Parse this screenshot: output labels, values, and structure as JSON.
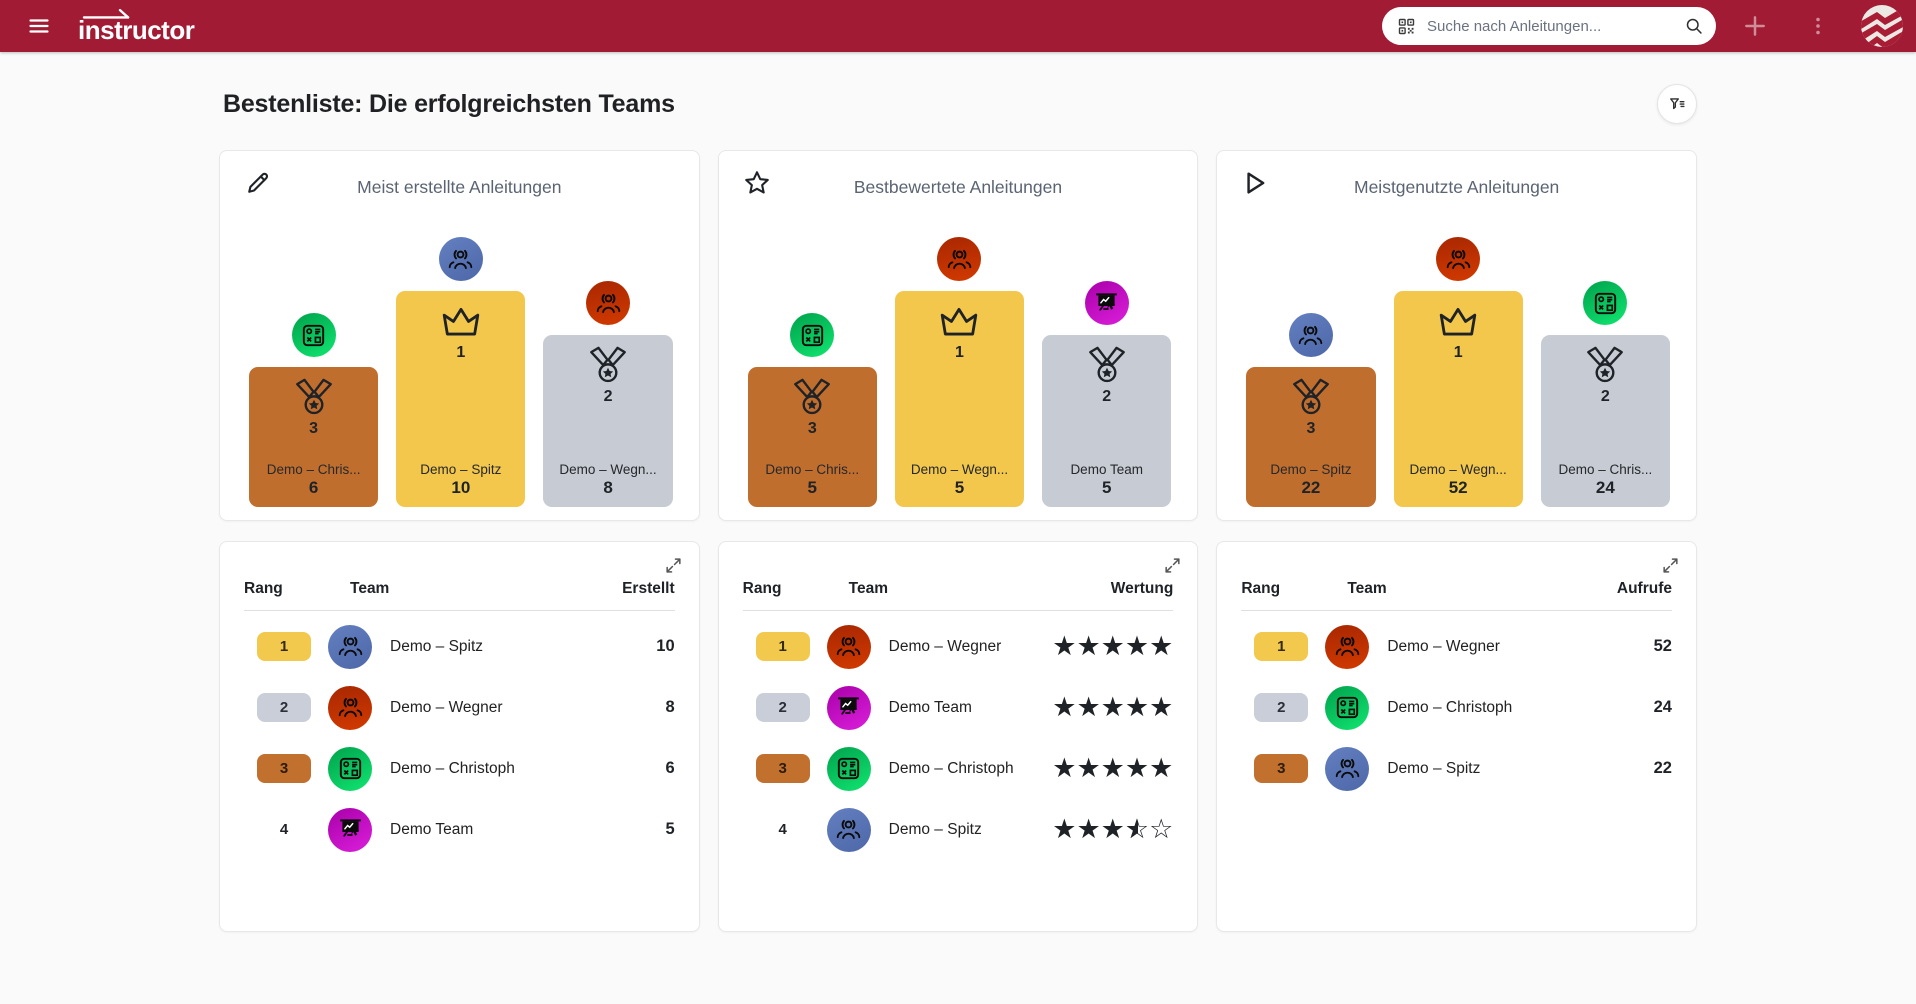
{
  "topbar": {
    "logo_text": "instructor",
    "search_placeholder": "Suche nach Anleitungen...",
    "icons": [
      "hamburger",
      "qr-scan",
      "search",
      "add",
      "more-vertical",
      "account"
    ]
  },
  "page_title": "Bestenliste: Die erfolgreichsten Teams",
  "colors": {
    "topbar_red": "#A01B33",
    "gold": "#F2C74B",
    "silver": "#C6CBD4",
    "bronze": "#C06E2E",
    "avatar_blue": "#5A74B4",
    "avatar_red": "#C33000",
    "avatar_green": "#00C257",
    "avatar_magenta": "#C400C4"
  },
  "podium_cards": [
    {
      "icon": "pencil",
      "title": "Meist erstellte Anleitungen",
      "slots": [
        {
          "pos": "third",
          "rank": "3",
          "avatar": "green-machine",
          "name": "Demo – Chris...",
          "value": "6"
        },
        {
          "pos": "first",
          "rank": "1",
          "avatar": "blue-people",
          "name": "Demo – Spitz",
          "value": "10"
        },
        {
          "pos": "second",
          "rank": "2",
          "avatar": "red-people",
          "name": "Demo – Wegn...",
          "value": "8"
        }
      ]
    },
    {
      "icon": "star",
      "title": "Bestbewertete Anleitungen",
      "slots": [
        {
          "pos": "third",
          "rank": "3",
          "avatar": "green-machine",
          "name": "Demo – Chris...",
          "value": "5"
        },
        {
          "pos": "first",
          "rank": "1",
          "avatar": "red-people",
          "name": "Demo – Wegn...",
          "value": "5"
        },
        {
          "pos": "second",
          "rank": "2",
          "avatar": "magenta-presentation",
          "name": "Demo Team",
          "value": "5"
        }
      ]
    },
    {
      "icon": "play",
      "title": "Meistgenutzte Anleitungen",
      "slots": [
        {
          "pos": "third",
          "rank": "3",
          "avatar": "blue-people",
          "name": "Demo – Spitz",
          "value": "22"
        },
        {
          "pos": "first",
          "rank": "1",
          "avatar": "red-people",
          "name": "Demo – Wegn...",
          "value": "52"
        },
        {
          "pos": "second",
          "rank": "2",
          "avatar": "green-machine",
          "name": "Demo – Chris...",
          "value": "24"
        }
      ]
    }
  ],
  "tables": [
    {
      "columns": {
        "rank": "Rang",
        "team": "Team",
        "value": "Erstellt"
      },
      "rows": [
        {
          "rank": "1",
          "badge": "gold",
          "avatar": "blue-people",
          "team": "Demo – Spitz",
          "value": "10"
        },
        {
          "rank": "2",
          "badge": "silver",
          "avatar": "red-people",
          "team": "Demo – Wegner",
          "value": "8"
        },
        {
          "rank": "3",
          "badge": "bronze",
          "avatar": "green-machine",
          "team": "Demo – Christoph",
          "value": "6"
        },
        {
          "rank": "4",
          "badge": "none",
          "avatar": "magenta-presentation",
          "team": "Demo Team",
          "value": "5"
        }
      ]
    },
    {
      "columns": {
        "rank": "Rang",
        "team": "Team",
        "value": "Wertung"
      },
      "rows": [
        {
          "rank": "1",
          "badge": "gold",
          "avatar": "red-people",
          "team": "Demo – Wegner",
          "rating": 5
        },
        {
          "rank": "2",
          "badge": "silver",
          "avatar": "magenta-presentation",
          "team": "Demo Team",
          "rating": 5
        },
        {
          "rank": "3",
          "badge": "bronze",
          "avatar": "green-machine",
          "team": "Demo – Christoph",
          "rating": 5
        },
        {
          "rank": "4",
          "badge": "none",
          "avatar": "blue-people",
          "team": "Demo – Spitz",
          "rating": 3.5
        }
      ]
    },
    {
      "columns": {
        "rank": "Rang",
        "team": "Team",
        "value": "Aufrufe"
      },
      "rows": [
        {
          "rank": "1",
          "badge": "gold",
          "avatar": "red-people",
          "team": "Demo – Wegner",
          "value": "52"
        },
        {
          "rank": "2",
          "badge": "silver",
          "avatar": "green-machine",
          "team": "Demo – Christoph",
          "value": "24"
        },
        {
          "rank": "3",
          "badge": "bronze",
          "avatar": "blue-people",
          "team": "Demo – Spitz",
          "value": "22"
        }
      ]
    }
  ]
}
